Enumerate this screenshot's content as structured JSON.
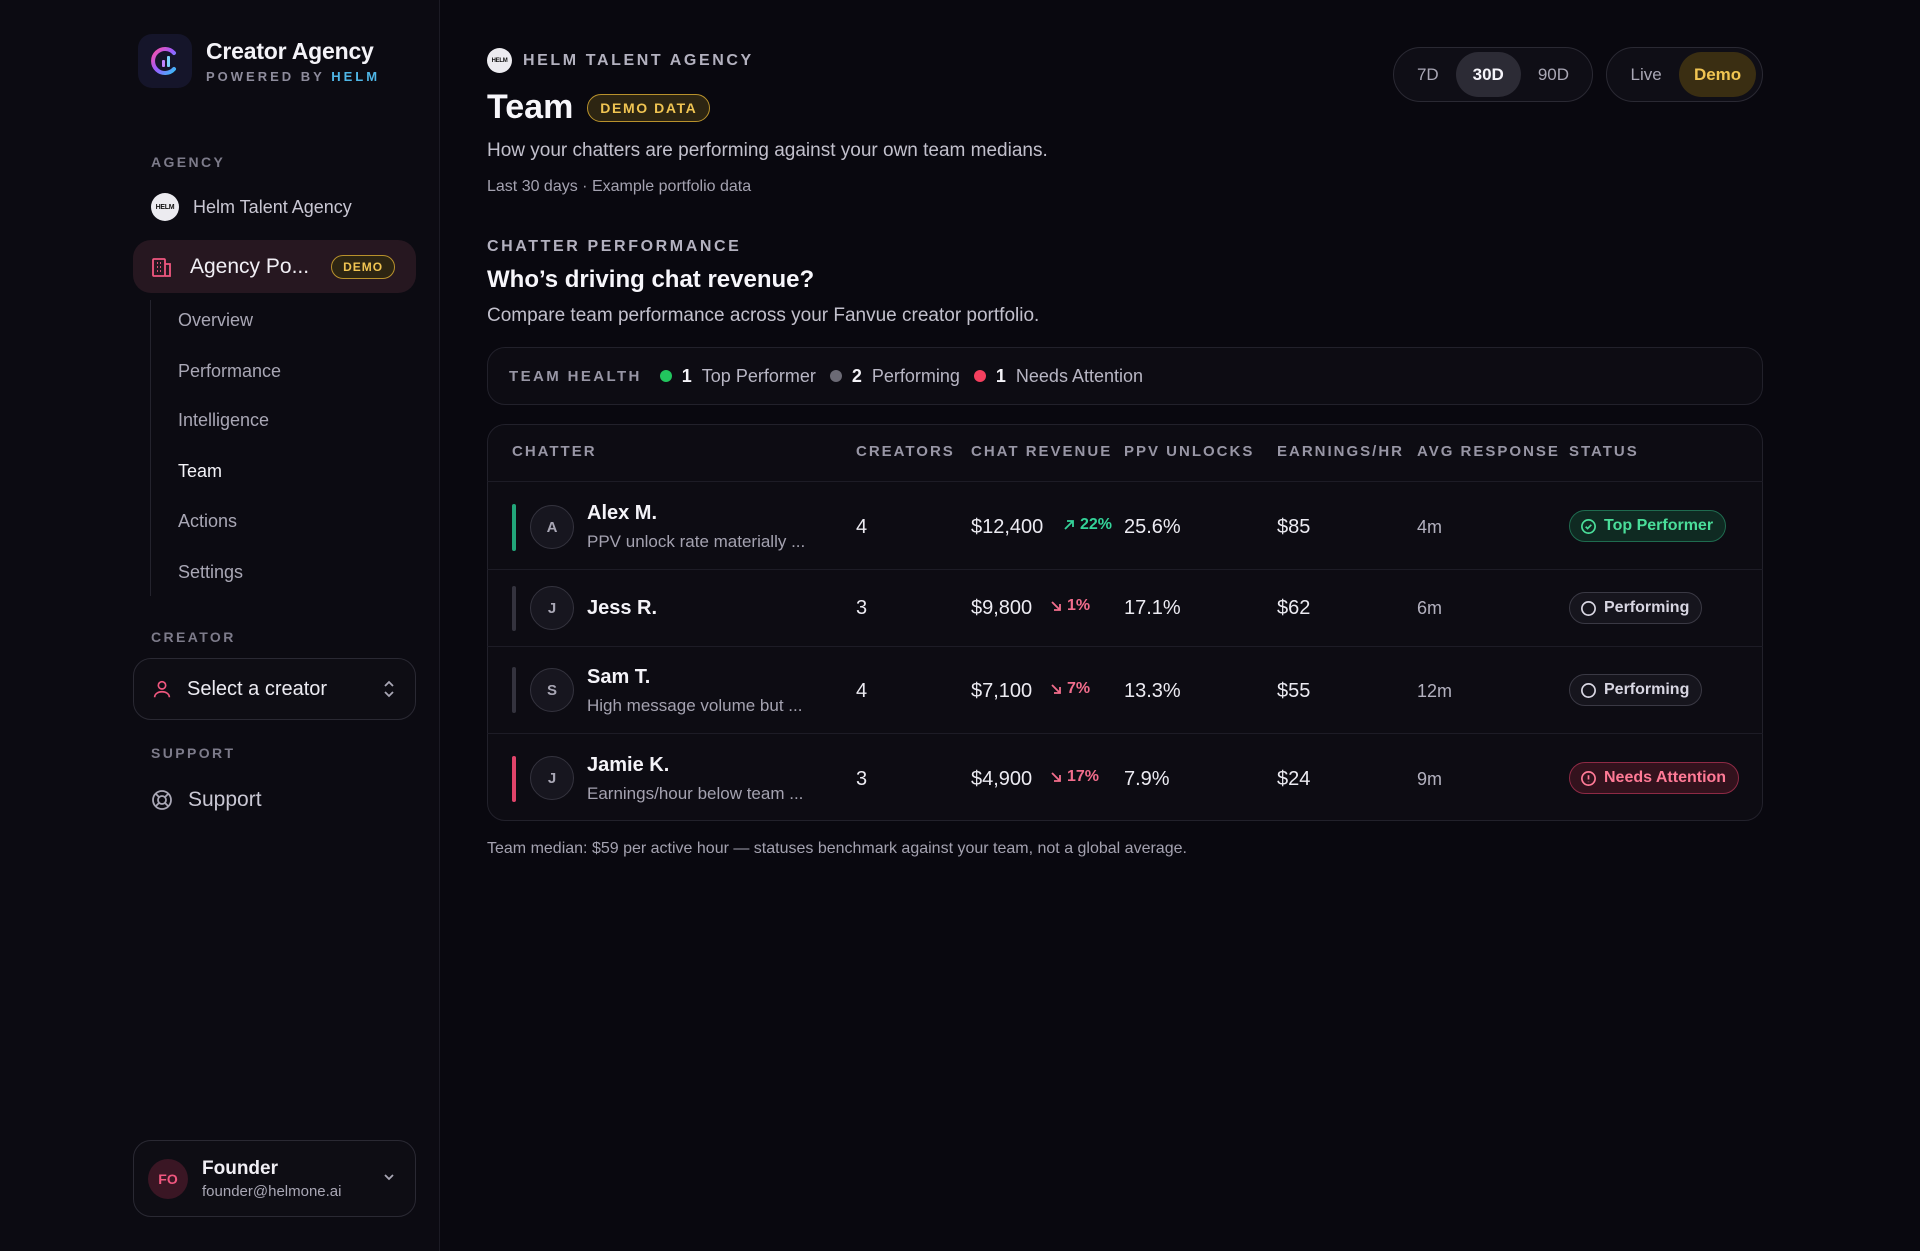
{
  "brand": {
    "title": "Creator Agency",
    "powered_by": "POWERED BY",
    "helm": "HELM"
  },
  "sidebar": {
    "agency_label": "AGENCY",
    "agency": {
      "avatar": "HELM",
      "name": "Helm Talent Agency"
    },
    "portfolio": {
      "label": "Agency Po...",
      "badge": "DEMO"
    },
    "subnav": [
      {
        "label": "Overview",
        "active": false
      },
      {
        "label": "Performance",
        "active": false
      },
      {
        "label": "Intelligence",
        "active": false
      },
      {
        "label": "Team",
        "active": true
      },
      {
        "label": "Actions",
        "active": false
      },
      {
        "label": "Settings",
        "active": false
      }
    ],
    "creator_label": "CREATOR",
    "creator_select": "Select a creator",
    "support_label": "SUPPORT",
    "support": "Support",
    "user": {
      "initials": "FO",
      "name": "Founder",
      "email": "founder@helmone.ai"
    }
  },
  "header": {
    "eyebrow_logo": "HELM",
    "eyebrow": "HELM TALENT AGENCY",
    "title": "Team",
    "badge": "DEMO DATA",
    "description": "How your chatters are performing against your own team medians.",
    "meta": "Last 30 days · Example portfolio data",
    "ranges": [
      {
        "label": "7D",
        "selected": false
      },
      {
        "label": "30D",
        "selected": true
      },
      {
        "label": "90D",
        "selected": false
      }
    ],
    "modes": [
      {
        "label": "Live",
        "selected": false
      },
      {
        "label": "Demo",
        "selected": true
      }
    ]
  },
  "section": {
    "eyebrow": "CHATTER PERFORMANCE",
    "title": "Who’s driving chat revenue?",
    "description": "Compare team performance across your Fanvue creator portfolio."
  },
  "team_health": {
    "label": "TEAM HEALTH",
    "items": [
      {
        "count": "1",
        "label": "Top Performer",
        "color": "#22c55e"
      },
      {
        "count": "2",
        "label": "Performing",
        "color": "#6b6a75"
      },
      {
        "count": "1",
        "label": "Needs Attention",
        "color": "#f43f5e"
      }
    ]
  },
  "table": {
    "columns": {
      "chatter": "CHATTER",
      "creators": "CREATORS",
      "chat_revenue": "CHAT REVENUE",
      "ppv_unlocks": "PPV UNLOCKS",
      "earnings_hr": "EARNINGS/HR",
      "avg_response": "AVG RESPONSE",
      "status": "STATUS"
    },
    "rows": [
      {
        "initial": "A",
        "name": "Alex M.",
        "note": "PPV unlock rate materially ...",
        "creators": "4",
        "revenue": "$12,400",
        "trend": "22%",
        "trend_dir": "up",
        "ppv": "25.6%",
        "earnings": "$85",
        "response": "4m",
        "status": "Top Performer",
        "status_kind": "top",
        "accent": "#22a67a"
      },
      {
        "initial": "J",
        "name": "Jess R.",
        "note": "",
        "creators": "3",
        "revenue": "$9,800",
        "trend": "1%",
        "trend_dir": "down",
        "ppv": "17.1%",
        "earnings": "$62",
        "response": "6m",
        "status": "Performing",
        "status_kind": "perf",
        "accent": "#34333e"
      },
      {
        "initial": "S",
        "name": "Sam T.",
        "note": "High message volume but ...",
        "creators": "4",
        "revenue": "$7,100",
        "trend": "7%",
        "trend_dir": "down",
        "ppv": "13.3%",
        "earnings": "$55",
        "response": "12m",
        "status": "Performing",
        "status_kind": "perf",
        "accent": "#34333e"
      },
      {
        "initial": "J",
        "name": "Jamie K.",
        "note": "Earnings/hour below team ...",
        "creators": "3",
        "revenue": "$4,900",
        "trend": "17%",
        "trend_dir": "down",
        "ppv": "7.9%",
        "earnings": "$24",
        "response": "9m",
        "status": "Needs Attention",
        "status_kind": "attn",
        "accent": "#e0446a"
      }
    ]
  },
  "footnote": "Team median: $59 per active hour — statuses benchmark against your team, not a global average."
}
